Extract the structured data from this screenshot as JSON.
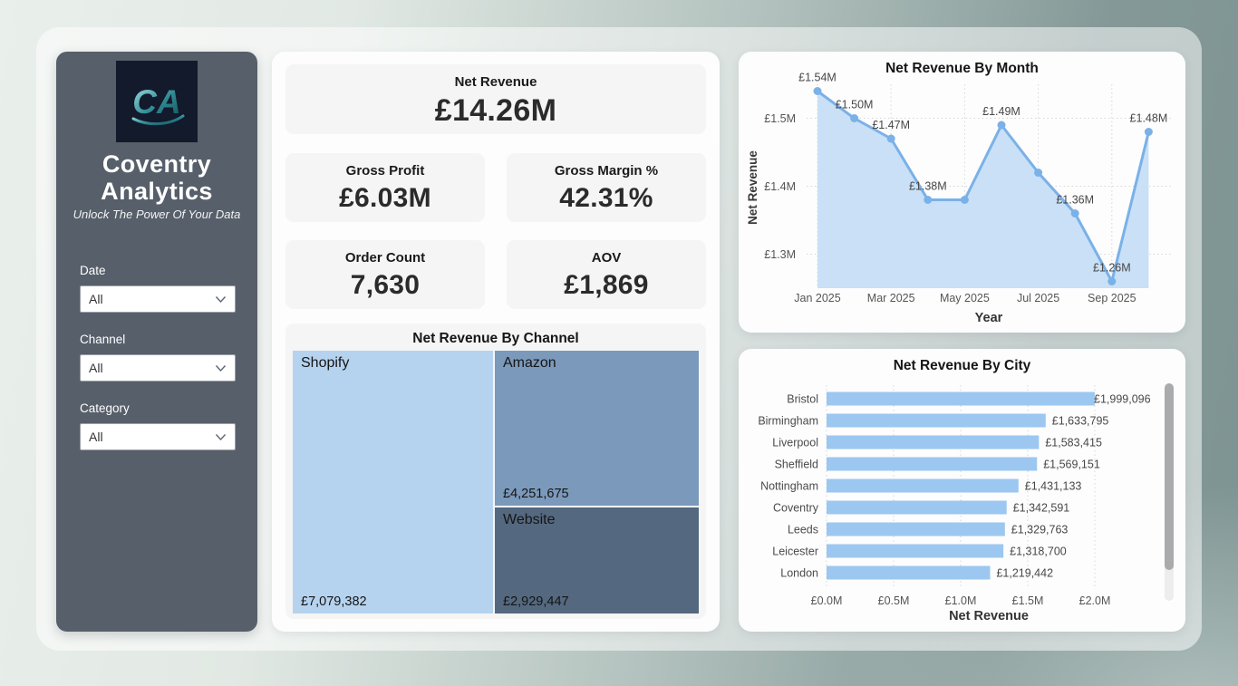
{
  "sidebar": {
    "logo_text": "CA",
    "title_line1": "Coventry",
    "title_line2": "Analytics",
    "tagline": "Unlock The Power Of Your Data",
    "filters": [
      {
        "label": "Date",
        "value": "All"
      },
      {
        "label": "Channel",
        "value": "All"
      },
      {
        "label": "Category",
        "value": "All"
      }
    ]
  },
  "kpis": [
    {
      "title": "Net Revenue",
      "value": "£14.26M"
    },
    {
      "title": "Gross Profit",
      "value": "£6.03M"
    },
    {
      "title": "Gross Margin %",
      "value": "42.31%"
    },
    {
      "title": "Order Count",
      "value": "7,630"
    },
    {
      "title": "AOV",
      "value": "£1,869"
    }
  ],
  "colors": {
    "sidebar_bg": "#575f6a",
    "logo_bg": "#121a2b",
    "logo_teal": "#2f8a93",
    "line": "#7ab1e8",
    "line_fill": "#c9e0f6",
    "bar": "#9cc7f0",
    "grid": "#d6d6d6",
    "axis_text": "#555555",
    "treemap_shopify": "#b5d3ef",
    "treemap_amazon": "#7b99ba",
    "treemap_website": "#54687f"
  },
  "chart_data": [
    {
      "id": "net_revenue_by_channel",
      "type": "treemap",
      "title": "Net Revenue By Channel",
      "items": [
        {
          "label": "Shopify",
          "value": 7079382,
          "display": "£7,079,382",
          "color": "#b5d3ef"
        },
        {
          "label": "Amazon",
          "value": 4251675,
          "display": "£4,251,675",
          "color": "#7b99ba"
        },
        {
          "label": "Website",
          "value": 2929447,
          "display": "£2,929,447",
          "color": "#54687f"
        }
      ]
    },
    {
      "id": "net_revenue_by_month",
      "type": "line",
      "title": "Net Revenue By Month",
      "xlabel": "Year",
      "ylabel": "Net Revenue",
      "x": [
        "Jan 2025",
        "Feb 2025",
        "Mar 2025",
        "Apr 2025",
        "May 2025",
        "Jun 2025",
        "Jul 2025",
        "Aug 2025",
        "Sep 2025",
        "Oct 2025"
      ],
      "values_millions": [
        1.54,
        1.5,
        1.47,
        1.38,
        1.38,
        1.49,
        1.42,
        1.36,
        1.26,
        1.48
      ],
      "point_labels": [
        "£1.54M",
        "£1.50M",
        "£1.47M",
        "£1.38M",
        "",
        "£1.49M",
        "",
        "£1.36M",
        "£1.26M",
        "£1.48M"
      ],
      "x_tick_indices": [
        0,
        2,
        4,
        6,
        8
      ],
      "x_tick_labels": [
        "Jan 2025",
        "Mar 2025",
        "May 2025",
        "Jul 2025",
        "Sep 2025"
      ],
      "y_ticks": [
        {
          "value": 1.3,
          "label": "£1.3M"
        },
        {
          "value": 1.4,
          "label": "£1.4M"
        },
        {
          "value": 1.5,
          "label": "£1.5M"
        }
      ],
      "ylim": [
        1.25,
        1.56
      ],
      "grid": "dotted",
      "legend": "none"
    },
    {
      "id": "net_revenue_by_city",
      "type": "bar",
      "orientation": "horizontal",
      "title": "Net Revenue By City",
      "xlabel": "Net Revenue",
      "categories": [
        "Bristol",
        "Birmingham",
        "Liverpool",
        "Sheffield",
        "Nottingham",
        "Coventry",
        "Leeds",
        "Leicester",
        "London"
      ],
      "values": [
        1999096,
        1633795,
        1583415,
        1569151,
        1431133,
        1342591,
        1329763,
        1318700,
        1219442
      ],
      "value_labels": [
        "£1,999,096",
        "£1,633,795",
        "£1,583,415",
        "£1,569,151",
        "£1,431,133",
        "£1,342,591",
        "£1,329,763",
        "£1,318,700",
        "£1,219,442"
      ],
      "x_ticks": [
        {
          "value": 0,
          "label": "£0.0M"
        },
        {
          "value": 500000,
          "label": "£0.5M"
        },
        {
          "value": 1000000,
          "label": "£1.0M"
        },
        {
          "value": 1500000,
          "label": "£1.5M"
        },
        {
          "value": 2000000,
          "label": "£2.0M"
        }
      ],
      "xlim": [
        0,
        2100000
      ],
      "grid": "dotted",
      "has_scrollbar": true
    }
  ]
}
